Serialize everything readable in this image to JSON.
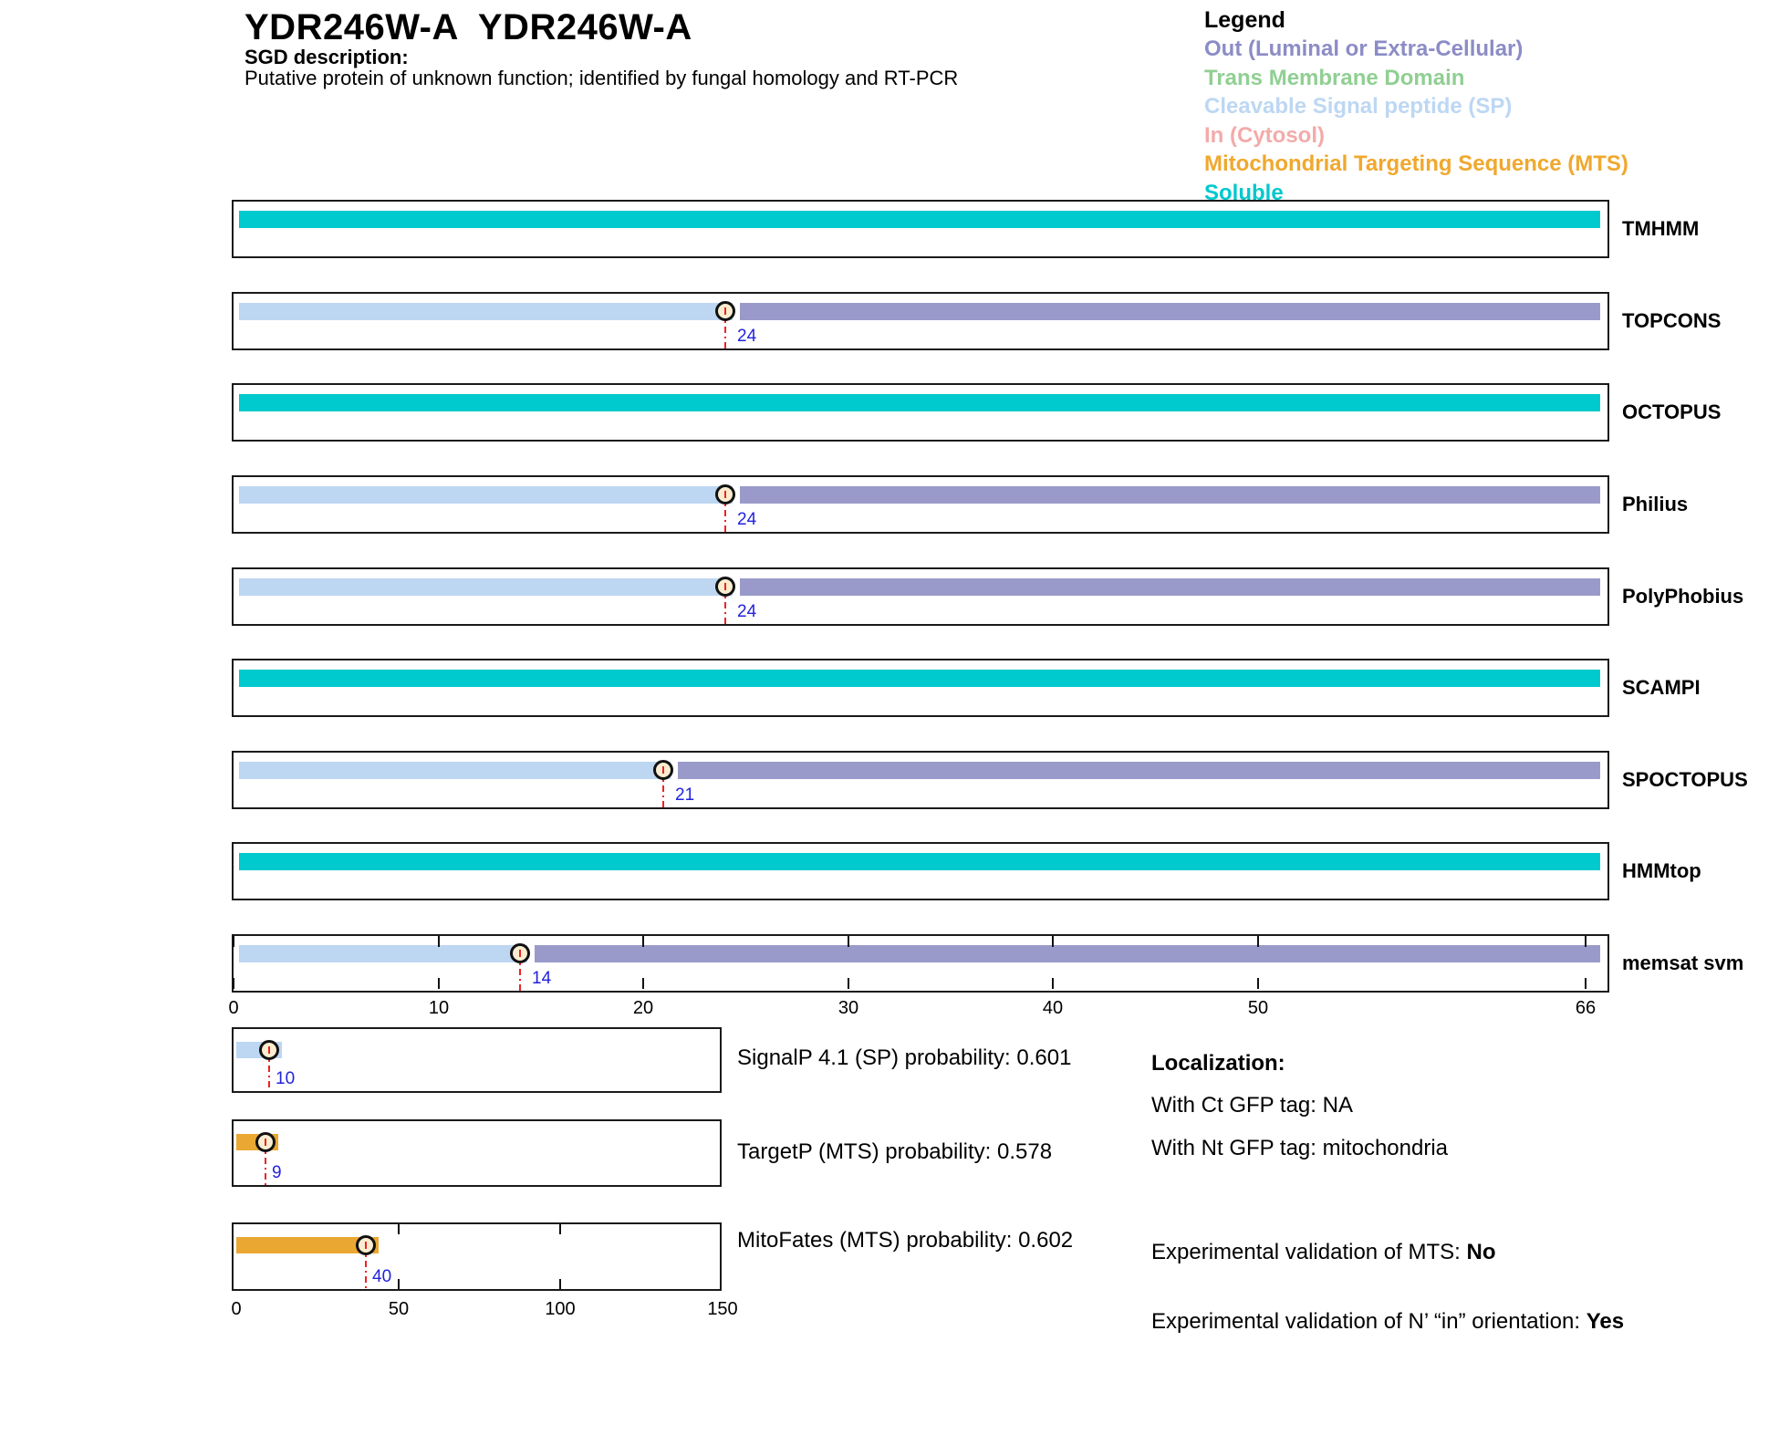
{
  "header": {
    "title": "YDR246W-A  YDR246W-A",
    "sgd_label": "SGD description:",
    "sgd_description": "Putative protein of unknown function; identified by fungal homology and RT-PCR"
  },
  "legend": {
    "title": "Legend",
    "items": [
      {
        "label": "Out (Luminal or Extra-Cellular)",
        "color": "#8C8CC6"
      },
      {
        "label": "Trans Membrane Domain",
        "color": "#90CF92"
      },
      {
        "label": "Cleavable Signal peptide (SP)",
        "color": "#BDD7F3"
      },
      {
        "label": "In (Cytosol)",
        "color": "#F2ABA9"
      },
      {
        "label": "Mitochondrial Targeting Sequence (MTS)",
        "color": "#F0A82E"
      },
      {
        "label": "Soluble",
        "color": "#00C8CC"
      }
    ]
  },
  "colors": {
    "soluble": "#00CACD",
    "sp": "#BDD6F2",
    "out": "#9A9ACA",
    "mts": "#EAA832",
    "marker_fill": "#FAEDD0",
    "marker_ring": "#111111",
    "value_label": "#2222DD",
    "guide_line": "#EE2222",
    "box_border": "#1A1A1A"
  },
  "chart_data": {
    "type": "bar",
    "title": "Membrane topology prediction tracks for YDR246W-A (66 residues)",
    "x_axis": {
      "min": 0,
      "max": 66,
      "ticks": [
        0,
        10,
        20,
        30,
        40,
        50,
        66
      ]
    },
    "tracks": [
      {
        "label": "TMHMM",
        "prediction": "Soluble",
        "segments": [
          {
            "type": "soluble",
            "start": 0,
            "end": 66
          }
        ]
      },
      {
        "label": "TOPCONS",
        "prediction": "SP then Out",
        "boundary": 24,
        "segments": [
          {
            "type": "sp",
            "start": 0,
            "end": 24
          },
          {
            "type": "out",
            "start": 24,
            "end": 66
          }
        ]
      },
      {
        "label": "OCTOPUS",
        "prediction": "Soluble",
        "segments": [
          {
            "type": "soluble",
            "start": 0,
            "end": 66
          }
        ]
      },
      {
        "label": "Philius",
        "prediction": "SP then Out",
        "boundary": 24,
        "segments": [
          {
            "type": "sp",
            "start": 0,
            "end": 24
          },
          {
            "type": "out",
            "start": 24,
            "end": 66
          }
        ]
      },
      {
        "label": "PolyPhobius",
        "prediction": "SP then Out",
        "boundary": 24,
        "segments": [
          {
            "type": "sp",
            "start": 0,
            "end": 24
          },
          {
            "type": "out",
            "start": 24,
            "end": 66
          }
        ]
      },
      {
        "label": "SCAMPI",
        "prediction": "Soluble",
        "segments": [
          {
            "type": "soluble",
            "start": 0,
            "end": 66
          }
        ]
      },
      {
        "label": "SPOCTOPUS",
        "prediction": "SP then Out",
        "boundary": 21,
        "segments": [
          {
            "type": "sp",
            "start": 0,
            "end": 21
          },
          {
            "type": "out",
            "start": 21,
            "end": 66
          }
        ]
      },
      {
        "label": "HMMtop",
        "prediction": "Soluble",
        "segments": [
          {
            "type": "soluble",
            "start": 0,
            "end": 66
          }
        ]
      },
      {
        "label": "memsat svm",
        "prediction": "SP then Out",
        "boundary": 14,
        "has_axis": true,
        "segments": [
          {
            "type": "sp",
            "start": 0,
            "end": 14
          },
          {
            "type": "out",
            "start": 14,
            "end": 66
          }
        ]
      }
    ],
    "probability_axis": {
      "min": 0,
      "max": 150,
      "ticks": [
        0,
        50,
        100,
        150
      ]
    },
    "probability_tracks": [
      {
        "label": "SignalP 4.1 (SP) probability: 0.601",
        "name": "SignalP 4.1 (SP)",
        "probability": 0.601,
        "type": "sp",
        "marker": 10,
        "bar_end": 14,
        "ticks": []
      },
      {
        "label": "TargetP (MTS) probability: 0.578",
        "name": "TargetP (MTS)",
        "probability": 0.578,
        "type": "mts",
        "marker": 9,
        "bar_end": 13,
        "ticks": []
      },
      {
        "label": "MitoFates (MTS) probability: 0.602",
        "name": "MitoFates (MTS)",
        "probability": 0.602,
        "type": "mts",
        "marker": 40,
        "bar_end": 44,
        "ticks": [
          50,
          100
        ]
      }
    ]
  },
  "info": {
    "localization_title": "Localization:",
    "ct_line": "With Ct GFP tag: NA",
    "nt_line": "With Nt GFP tag: mitochondria",
    "mts_validation_label": "Experimental validation of MTS:",
    "mts_validation_value": "No",
    "orientation_label": "Experimental validation of N’ “in” orientation:",
    "orientation_value": "Yes"
  }
}
